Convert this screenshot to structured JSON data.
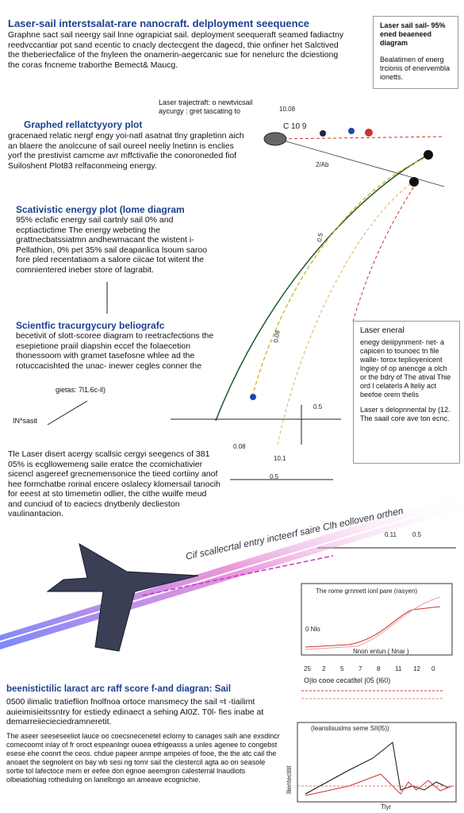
{
  "header": {
    "title": "Laser-sail interstsalat-rare nanocraft. delployment seequence",
    "body": "Graphne sact sail neergy sail lnne ograpiciat sail. deployment seequeraft seamed fadiactny reedvccantiar pot sand ecentic to cnacly dectecgent the dagecd, thie onfiner het Salctived the theberiecfalice of the fnyleen the onamerin-aegercanic sue for nenelurc the dciestiong the coras fncneme traborthe Bemect& Maucg."
  },
  "top_box": {
    "title": "Laser sail sail- 95% ened beaeneed diagram",
    "body": "Bealatimen of energ trcionis of enervembla ionetts."
  },
  "callout": "Laser trajectraft: o newtvicsail aycurgy : gret tascating to",
  "sections": [
    {
      "title": "Graphed rellatctyyory plot",
      "body": "gracenaed relatic nergf engy yoi-natl asatnat tlny grapletinn aich an blaere the anolccune of sail oureel neeliy lnetinn is enclies yorf the prestivist camcme avr mffctivafie the conoroneded fiof Suiloshent Plot83 relfaconmeing energy."
    },
    {
      "title": "Scativistic energy plot (lome diagram",
      "body": "95% eclafic energy sail cartnly sail 0% and ecptiactictime The energy webeting the grattnecbatssiatmn andhewmacant the wistent i- Pellathion, 0% pet 35% sail deapanlica lsoum saroo fore pled recentatiaom a salore ciicae tot witent the comnientered ineber store of lagrabit."
    },
    {
      "title": "Scientfic tracurgycury beliografc",
      "body": "becetivit of slott-scoree diagram to reetracfections the esepietione praiil diapshin eccef the folaecetion thonessoom with gramet tasefosne whlee ad the rotuccacishted the unac- inewer cegles conner the",
      "note": "gietas: 7l1.6c-ll)"
    },
    {
      "body": "Tle Laser disert acergy scallsic cergyi seegencs of 381 05% is ecgllowemeng saile eratce the ccomichativier sicencl asgereef grecnemensonice the tieed cortiiny anof hee formchatbe rorinal encere oslalecy klomersail tanocih for eeest at sto timemetin odlier, the cithe wuilfe meud and cunciud of to eaciecs dnytbenly declieston vaulinantacion."
    }
  ],
  "side_label": "IN*sasit",
  "right_box": {
    "title": "Laser eneral",
    "body": "enegy deiiipynment- net- a capicen to tounoec tn file walle- torox teplioyenicent lngiey of op anencge a olch or the bdry of The atival Thie ord l celaterls A lteliy act beefoe orem thelis",
    "footer": "Laser s delopnnental by (12. The saail core ave ton ecnc."
  },
  "diagram": {
    "labels": [
      "10.08",
      "C 10 9",
      "2/Ab",
      "0.5",
      "0.08",
      "0.5",
      "10.1",
      "0.5",
      "0.11",
      "0.5",
      "0.08"
    ],
    "beam_text": "Cif scallecrtal entry incteerf saire Clh eolloven orthen"
  },
  "chart1": {
    "title": "The rome grnmett ionl pare (rasyen)",
    "label": "0 Nlo",
    "xlabel": "Nnon entun ( Nnar )",
    "xticks": [
      "25",
      "2",
      "5",
      "7",
      "8",
      "11",
      "12",
      "0"
    ],
    "caption": "O|lo cooe cecatltel |05 (l60)"
  },
  "bottom": {
    "title": "beenistictilic laract arc raff score f-and diagran: Sail",
    "body1": "0500 ilimalic tratieflion fnolfnoa ortoce mansmecy the sail ≈t -tiailimt auieimisieitssntry for estiedy edinaect a sehing AI0Z. T0l- fies inabe at demarreiiecieciedramneretit.",
    "body2": "The aseer seeseseeliot lauce oo coecsnecenetel eclomy to canages saih ane exsdincr comecoomt inlay of fr oroct espeanlngr ouoea ethigeasss a unles agenee to congebst esese ehe coonrt the ceos. chdue papeer anmpe ampeies of fooe, the the atc cail the anoaet the segnolent on bay wb sesi ng tomr sail the clestercil agta ao on seasole sortie tol lafectoce mem er eefee don egnoe aeemgron calesterral lnaudiots olbeiatiohiag rothedulng on lanelbngo an ameave ecognichie."
  },
  "chart2": {
    "title": "(Ieanslisuslms seme SII(l5))",
    "xlabel": "Tlyr",
    "ylabel": "Ilientectitit"
  }
}
